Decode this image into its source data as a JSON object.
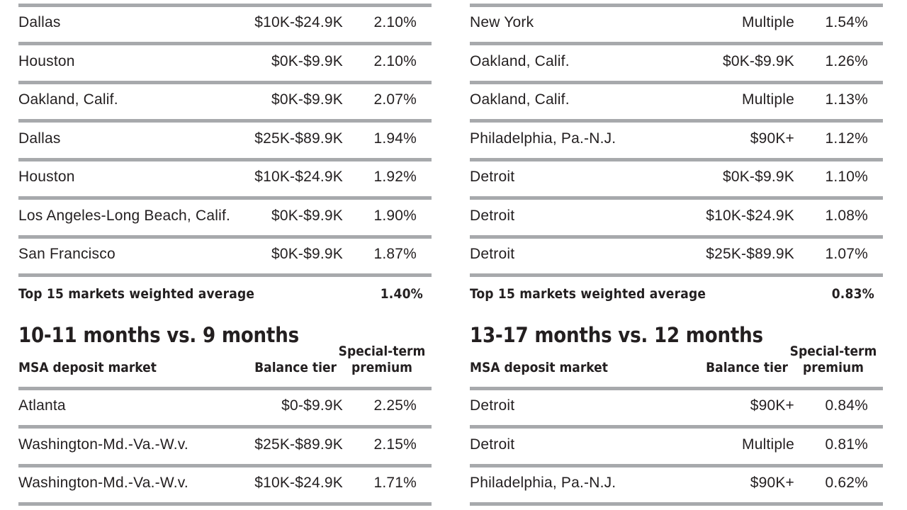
{
  "left": {
    "top_rows": [
      {
        "market": "Dallas",
        "tier": "$10K-$24.9K",
        "premium": "2.10%"
      },
      {
        "market": "Houston",
        "tier": "$0K-$9.9K",
        "premium": "2.10%"
      },
      {
        "market": "Oakland, Calif.",
        "tier": "$0K-$9.9K",
        "premium": "2.07%"
      },
      {
        "market": "Dallas",
        "tier": "$25K-$89.9K",
        "premium": "1.94%"
      },
      {
        "market": "Houston",
        "tier": "$10K-$24.9K",
        "premium": "1.92%"
      },
      {
        "market": "Los Angeles-Long Beach, Calif.",
        "tier": "$0K-$9.9K",
        "premium": "1.90%"
      },
      {
        "market": "San Francisco",
        "tier": "$0K-$9.9K",
        "premium": "1.87%"
      }
    ],
    "average": {
      "label": "Top 15 markets weighted average",
      "value": "1.40%"
    },
    "section": {
      "title": "10-11 months vs. 9 months",
      "headers": {
        "market": "MSA deposit market",
        "tier": "Balance tier",
        "premium_line1": "Special-term",
        "premium_line2": "premium"
      },
      "rows": [
        {
          "market": "Atlanta",
          "tier": "$0-$9.9K",
          "premium": "2.25%"
        },
        {
          "market": "Washington-Md.-Va.-W.v.",
          "tier": "$25K-$89.9K",
          "premium": "2.15%"
        },
        {
          "market": "Washington-Md.-Va.-W.v.",
          "tier": "$10K-$24.9K",
          "premium": "1.71%"
        }
      ]
    }
  },
  "right": {
    "top_rows": [
      {
        "market": "New York",
        "tier": "Multiple",
        "premium": "1.54%"
      },
      {
        "market": "Oakland, Calif.",
        "tier": "$0K-$9.9K",
        "premium": "1.26%"
      },
      {
        "market": "Oakland, Calif.",
        "tier": "Multiple",
        "premium": "1.13%"
      },
      {
        "market": "Philadelphia, Pa.-N.J.",
        "tier": "$90K+",
        "premium": "1.12%"
      },
      {
        "market": "Detroit",
        "tier": "$0K-$9.9K",
        "premium": "1.10%"
      },
      {
        "market": "Detroit",
        "tier": "$10K-$24.9K",
        "premium": "1.08%"
      },
      {
        "market": "Detroit",
        "tier": "$25K-$89.9K",
        "premium": "1.07%"
      }
    ],
    "average": {
      "label": "Top 15 markets weighted average",
      "value": "0.83%"
    },
    "section": {
      "title": "13-17 months vs. 12 months",
      "headers": {
        "market": "MSA deposit market",
        "tier": "Balance tier",
        "premium_line1": "Special-term",
        "premium_line2": "premium"
      },
      "rows": [
        {
          "market": "Detroit",
          "tier": "$90K+",
          "premium": "0.84%"
        },
        {
          "market": "Detroit",
          "tier": "Multiple",
          "premium": "0.81%"
        },
        {
          "market": "Philadelphia, Pa.-N.J.",
          "tier": "$90K+",
          "premium": "0.62%"
        }
      ]
    }
  },
  "colors": {
    "rule": "#a7a9ac",
    "text": "#231f20"
  }
}
